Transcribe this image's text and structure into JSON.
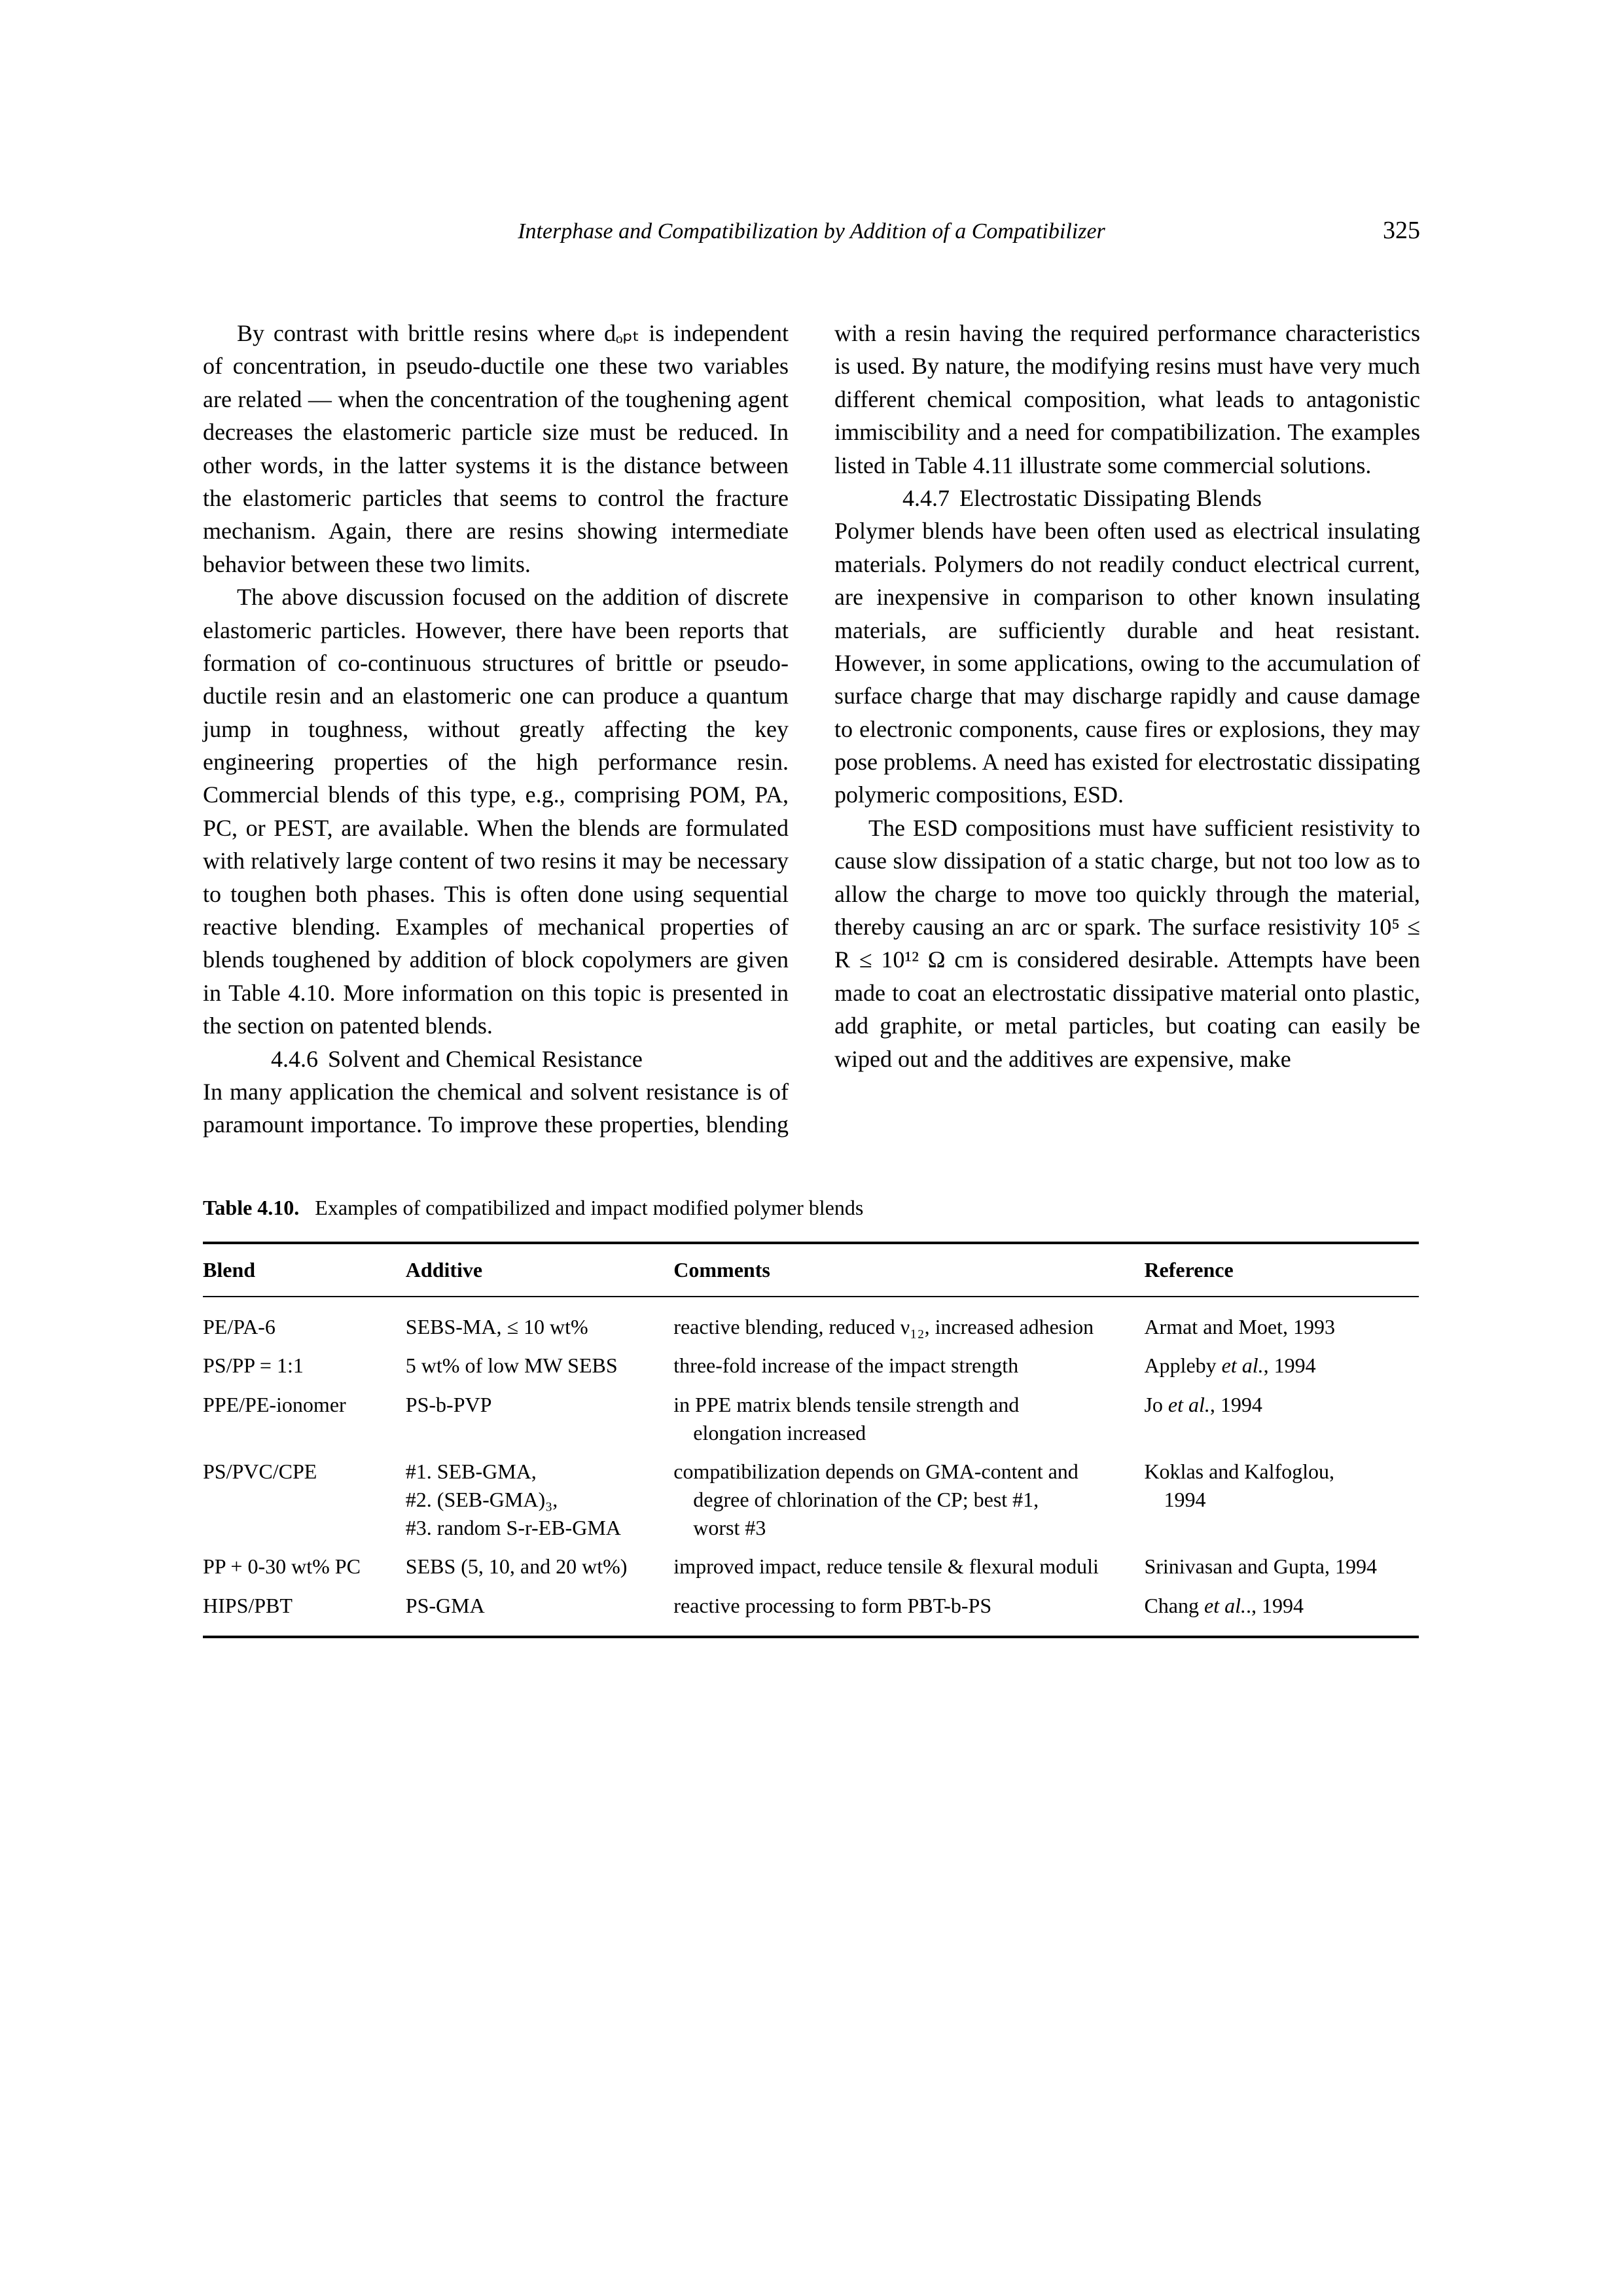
{
  "header": {
    "running_title": "Interphase and Compatibilization by Addition of a Compatibilizer",
    "page_number": "325"
  },
  "body": {
    "p1": "By contrast with brittle resins where dₒₚₜ is independent of concentration, in pseudo-ductile one these two variables are related — when the concentration of the toughening agent decreases the elastomeric particle size must be reduced. In other words, in the latter systems it is the distance between the elastomeric particles that seems to control the fracture mechanism. Again, there are resins showing intermediate behavior between these two limits.",
    "p2": "The above discussion focused on the addition of discrete elastomeric particles. However, there have been reports that formation of co-continuous structures of brittle or pseudo-ductile resin and an elastomeric one can produce a quantum jump in toughness, without greatly affecting the key engineering properties of the high performance resin. Commercial blends of this type, e.g., comprising POM, PA, PC, or PEST, are available. When the blends are formulated with relatively large content of two resins it may be necessary to toughen both phases. This is often done using sequential reactive blending. Examples of mechanical properties of blends toughened by addition of block copolymers are given in Table 4.10. More information on this topic is presented in the section on patented blends.",
    "sec446_num": "4.4.6",
    "sec446_title": "Solvent and Chemical Resistance",
    "p3": "In many application the chemical and solvent resistance is of paramount importance. To improve these properties, blending with a resin having the required performance characteristics is used. By nature, the modifying resins must have very much different chemical composition, what leads to antagonistic immiscibility and a need for compatibilization. The examples listed in Table 4.11 illustrate some commercial solutions.",
    "sec447_num": "4.4.7",
    "sec447_title": "Electrostatic Dissipating Blends",
    "p4": "Polymer blends have been often used as electrical insulating materials. Polymers do not readily conduct electrical current, are inexpensive in comparison to other known insulating materials, are sufficiently durable and heat resistant. However, in some applications, owing to the accumulation of surface charge that may discharge rapidly and cause damage to electronic components, cause fires or explosions, they may pose problems. A need has existed for electrostatic dissipating polymeric compositions, ESD.",
    "p5": "The ESD compositions must have sufficient resistivity to cause slow dissipation of a static charge, but not too low as to allow the charge to move too quickly through the material, thereby causing an arc or spark. The surface resistivity 10⁵ ≤ R ≤ 10¹² Ω cm is considered desirable. Attempts have been made to coat an electrostatic dissipative material onto plastic, add graphite, or metal particles, but coating can easily be wiped out and the additives are expensive, make"
  },
  "table": {
    "caption_label": "Table 4.10.",
    "caption_text": "Examples of compatibilized and impact modified polymer blends",
    "head": {
      "c1": "Blend",
      "c2": "Additive",
      "c3": "Comments",
      "c4": "Reference"
    },
    "rows": {
      "r1": {
        "blend": "PE/PA-6",
        "additive": "SEBS-MA, ≤ 10 wt%",
        "comments": "reactive blending, reduced ν₁₂, increased adhesion",
        "ref": "Armat and Moet, 1993"
      },
      "r2": {
        "blend": "PS/PP = 1:1",
        "additive": "5 wt% of low MW SEBS",
        "comments": "three-fold increase of the impact strength",
        "ref": "Appleby et al., 1994"
      },
      "r3": {
        "blend": "PPE/PE-ionomer",
        "additive": "PS-b-PVP",
        "comments_l1": "in PPE matrix blends tensile strength and",
        "comments_l2": "elongation increased",
        "ref": "Jo et al., 1994"
      },
      "r4": {
        "blend": "PS/PVC/CPE",
        "additive_l1": "#1. SEB-GMA,",
        "additive_l2": "#2. (SEB-GMA)₃,",
        "additive_l3": "#3. random  S-r-EB-GMA",
        "comments_l1": "compatibilization depends on GMA-content and",
        "comments_l2": "degree of chlorination of the CP; best #1,",
        "comments_l3": "worst #3",
        "ref_l1": "Koklas and Kalfoglou,",
        "ref_l2": "1994"
      },
      "r5": {
        "blend": "PP + 0-30 wt% PC",
        "additive": "SEBS (5, 10, and 20 wt%)",
        "comments": "improved impact, reduce tensile & flexural moduli",
        "ref": "Srinivasan and Gupta, 1994"
      },
      "r6": {
        "blend": "HIPS/PBT",
        "additive": "PS-GMA",
        "comments": "reactive processing to form PBT-b-PS",
        "ref": "Chang et al.., 1994"
      }
    }
  }
}
